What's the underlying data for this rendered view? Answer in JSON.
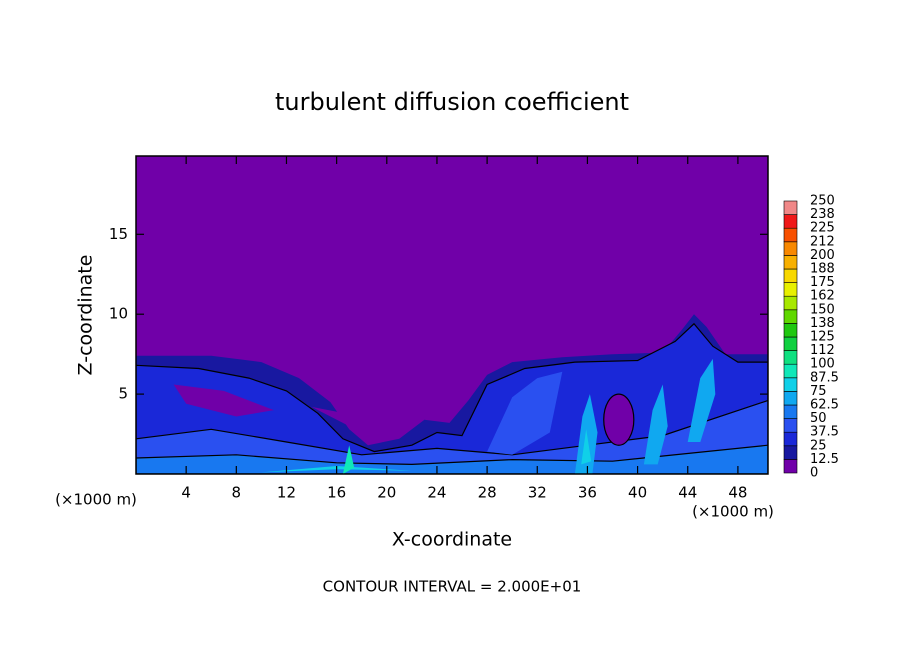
{
  "chart_data": {
    "type": "contour",
    "title": "turbulent diffusion coefficient",
    "xlabel": "X-coordinate",
    "ylabel": "Z-coordinate",
    "xunit": "(×1000 m)",
    "yunit": "(×1000 m)",
    "footer": "CONTOUR INTERVAL = 2.000E+01",
    "xlim": [
      0,
      50.4
    ],
    "ylim": [
      0,
      19.9
    ],
    "xticks": [
      4,
      8,
      12,
      16,
      20,
      24,
      28,
      32,
      36,
      40,
      44,
      48
    ],
    "yticks": [
      5,
      10,
      15
    ],
    "colorbar": {
      "levels": [
        0,
        12.5,
        25,
        37.5,
        50,
        62.5,
        75,
        87.5,
        100,
        {
          "value": 112.5,
          "label": "112"
        },
        125,
        {
          "value": 137.5,
          "label": "138"
        },
        150,
        {
          "value": 162.5,
          "label": "162"
        },
        175,
        {
          "value": 187.5,
          "label": "188"
        },
        200,
        {
          "value": 212.5,
          "label": "212"
        },
        225,
        {
          "value": 237.5,
          "label": "238"
        },
        250
      ],
      "colors": [
        "#7000a8",
        "#1818a0",
        "#1a28d8",
        "#2a50f0",
        "#1878f0",
        "#10a8f0",
        "#10d0e8",
        "#10e8b8",
        "#10e080",
        "#10d040",
        "#20c810",
        "#60d800",
        "#a8e800",
        "#e8f000",
        "#f8d800",
        "#f8b000",
        "#f88800",
        "#f85000",
        "#f01818",
        "#f08888"
      ]
    }
  }
}
